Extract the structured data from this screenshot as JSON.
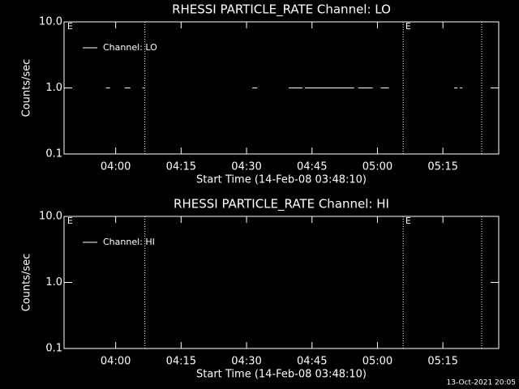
{
  "chart_data": [
    {
      "type": "line",
      "title": "RHESSI PARTICLE_RATE Channel: LO",
      "xlabel": "Start Time (14-Feb-08 03:48:10)",
      "ylabel": "Counts/sec",
      "log_y": true,
      "legend": "upper left",
      "xlim": [
        228.17,
        327.8
      ],
      "xticks": [
        {
          "value": 240,
          "label": "04:00"
        },
        {
          "value": 255,
          "label": "04:15"
        },
        {
          "value": 270,
          "label": "04:30"
        },
        {
          "value": 285,
          "label": "04:45"
        },
        {
          "value": 300,
          "label": "05:00"
        },
        {
          "value": 315,
          "label": "05:15"
        }
      ],
      "ylim": [
        0.1,
        10
      ],
      "yticks": [
        0.1,
        {
          "value": 1,
          "label": "1.0"
        },
        {
          "value": 10,
          "label": "10.0"
        }
      ],
      "vlines": [
        246.7,
        305.9,
        323.9
      ],
      "annotations": [
        {
          "text": "E",
          "x": 228.9
        },
        {
          "text": "E",
          "x": 306.4
        }
      ],
      "series": [
        {
          "name": "Channel: LO",
          "color": "#ffffff",
          "x": [
            237.8,
            238.7,
            240,
            242.06,
            243.35,
            245,
            246.13,
            246.5,
            260,
            271.32,
            272.43,
            276,
            279.65,
            282.8,
            283.1,
            283.35,
            294.65,
            295.1,
            295.58,
            298.9,
            300,
            300.76,
            302.6,
            310,
            317.6,
            318.35,
            318.6,
            318.9,
            319.46
          ],
          "values": [
            1,
            1,
            null,
            1,
            1,
            null,
            1,
            1,
            null,
            1,
            1,
            null,
            1,
            1,
            null,
            1,
            1,
            null,
            1,
            1,
            null,
            1,
            1,
            null,
            1,
            1,
            null,
            1,
            1
          ]
        }
      ]
    },
    {
      "type": "line",
      "title": "RHESSI PARTICLE_RATE Channel: HI",
      "xlabel": "Start Time (14-Feb-08 03:48:10)",
      "ylabel": "Counts/sec",
      "log_y": true,
      "legend": "upper left",
      "xlim": [
        228.17,
        327.8
      ],
      "xticks": [
        {
          "value": 240,
          "label": "04:00"
        },
        {
          "value": 255,
          "label": "04:15"
        },
        {
          "value": 270,
          "label": "04:30"
        },
        {
          "value": 285,
          "label": "04:45"
        },
        {
          "value": 300,
          "label": "05:00"
        },
        {
          "value": 315,
          "label": "05:15"
        }
      ],
      "ylim": [
        0.1,
        10
      ],
      "yticks": [
        0.1,
        {
          "value": 1,
          "label": "1.0"
        },
        {
          "value": 10,
          "label": "10.0"
        }
      ],
      "vlines": [
        246.7,
        305.9,
        323.9
      ],
      "annotations": [
        {
          "text": "E",
          "x": 228.9
        },
        {
          "text": "E",
          "x": 306.4
        }
      ],
      "series": [
        {
          "name": "Channel: HI",
          "color": "#ffffff",
          "x": [],
          "values": []
        }
      ]
    }
  ],
  "footer": "13-Oct-2021 20:05"
}
